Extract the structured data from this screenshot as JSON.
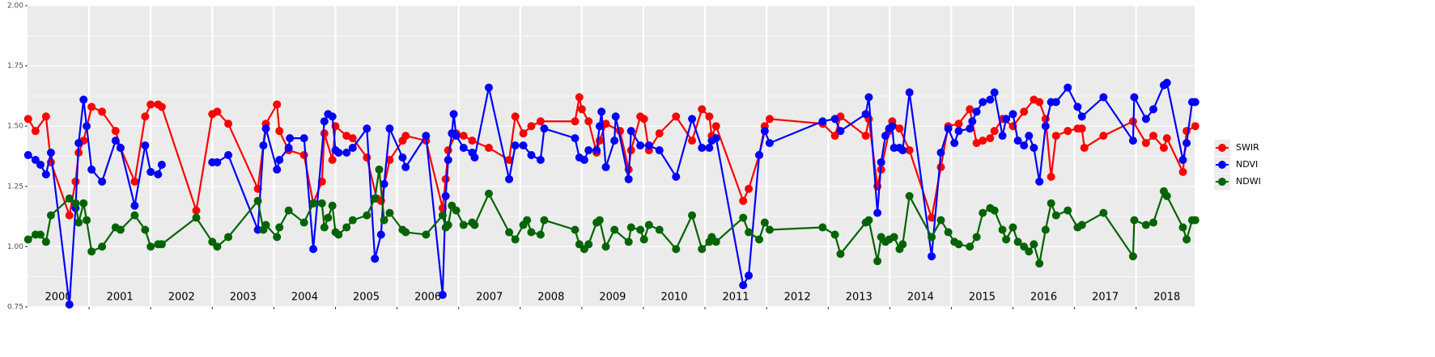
{
  "chart_data": {
    "type": "line",
    "xlim": [
      2000,
      2018.95
    ],
    "xticks": [
      2001,
      2002,
      2003,
      2004,
      2005,
      2006,
      2007,
      2008,
      2009,
      2010,
      2011,
      2012,
      2013,
      2014,
      2015,
      2016,
      2017,
      2018
    ],
    "ylim": [
      0.75,
      2.0
    ],
    "yticks": [
      {
        "value": 0.75,
        "label": "0.75"
      },
      {
        "value": 1.0,
        "label": "1.00"
      },
      {
        "value": 1.25,
        "label": "1.25"
      },
      {
        "value": 1.5,
        "label": "1.50"
      },
      {
        "value": 1.75,
        "label": "1.75"
      },
      {
        "value": 2.0,
        "label": "2.00"
      }
    ],
    "grid": true,
    "legend": "right",
    "annotations": [
      {
        "text": "2000",
        "x": 2000.5,
        "y": 0.79
      },
      {
        "text": "2001",
        "x": 2001.5,
        "y": 0.79
      },
      {
        "text": "2002",
        "x": 2002.5,
        "y": 0.79
      },
      {
        "text": "2003",
        "x": 2003.5,
        "y": 0.79
      },
      {
        "text": "2004",
        "x": 2004.5,
        "y": 0.79
      },
      {
        "text": "2005",
        "x": 2005.5,
        "y": 0.79
      },
      {
        "text": "2006",
        "x": 2006.5,
        "y": 0.79
      },
      {
        "text": "2007",
        "x": 2007.5,
        "y": 0.79
      },
      {
        "text": "2008",
        "x": 2008.5,
        "y": 0.79
      },
      {
        "text": "2009",
        "x": 2009.5,
        "y": 0.79
      },
      {
        "text": "2010",
        "x": 2010.5,
        "y": 0.79
      },
      {
        "text": "2011",
        "x": 2011.5,
        "y": 0.79
      },
      {
        "text": "2012",
        "x": 2012.5,
        "y": 0.79
      },
      {
        "text": "2013",
        "x": 2013.5,
        "y": 0.79
      },
      {
        "text": "2014",
        "x": 2014.5,
        "y": 0.79
      },
      {
        "text": "2015",
        "x": 2015.5,
        "y": 0.79
      },
      {
        "text": "2016",
        "x": 2016.5,
        "y": 0.79
      },
      {
        "text": "2017",
        "x": 2017.5,
        "y": 0.79
      },
      {
        "text": "2018",
        "x": 2018.5,
        "y": 0.79
      }
    ],
    "series": [
      {
        "name": "SWIR",
        "color": "#ff0000",
        "x": [
          2000.01,
          2000.13,
          2000.3,
          2000.38,
          2000.68,
          2000.78,
          2000.83,
          2000.91,
          2001.04,
          2001.21,
          2001.43,
          2001.51,
          2001.74,
          2001.91,
          2002.0,
          2002.12,
          2002.18,
          2002.74,
          2003.0,
          2003.08,
          2003.26,
          2003.74,
          2003.87,
          2004.05,
          2004.09,
          2004.24,
          2004.49,
          2004.64,
          2004.78,
          2004.82,
          2004.95,
          2005.0,
          2005.18,
          2005.28,
          2005.51,
          2005.67,
          2005.74,
          2005.88,
          2006.09,
          2006.14,
          2006.47,
          2006.74,
          2006.79,
          2006.83,
          2006.96,
          2007.08,
          2007.22,
          2007.49,
          2007.82,
          2007.92,
          2008.05,
          2008.18,
          2008.33,
          2008.89,
          2008.96,
          2009.0,
          2009.11,
          2009.24,
          2009.29,
          2009.39,
          2009.62,
          2009.76,
          2009.8,
          2009.95,
          2010.01,
          2010.09,
          2010.26,
          2010.53,
          2010.79,
          2010.95,
          2011.07,
          2011.11,
          2011.18,
          2011.62,
          2011.71,
          2011.88,
          2011.97,
          2012.05,
          2012.91,
          2013.11,
          2013.2,
          2013.61,
          2013.66,
          2013.8,
          2013.86,
          2013.99,
          2014.04,
          2014.16,
          2014.32,
          2014.68,
          2014.83,
          2014.95,
          2015.12,
          2015.3,
          2015.41,
          2015.51,
          2015.63,
          2015.7,
          2015.83,
          2016.0,
          2016.18,
          2016.34,
          2016.43,
          2016.53,
          2016.62,
          2016.7,
          2016.89,
          2017.05,
          2017.12,
          2017.16,
          2017.47,
          2017.95,
          2018.16,
          2018.28,
          2018.45,
          2018.5,
          2018.76,
          2018.82,
          2018.96
        ],
        "values": [
          1.53,
          1.48,
          1.54,
          1.35,
          1.13,
          1.27,
          1.39,
          1.44,
          1.58,
          1.56,
          1.48,
          1.41,
          1.27,
          1.54,
          1.59,
          1.59,
          1.58,
          1.15,
          1.55,
          1.56,
          1.51,
          1.24,
          1.51,
          1.59,
          1.48,
          1.4,
          1.38,
          1.18,
          1.27,
          1.47,
          1.36,
          1.5,
          1.46,
          1.45,
          1.37,
          1.2,
          1.19,
          1.36,
          1.44,
          1.46,
          1.44,
          1.16,
          1.28,
          1.4,
          1.47,
          1.46,
          1.44,
          1.41,
          1.36,
          1.54,
          1.47,
          1.5,
          1.52,
          1.52,
          1.62,
          1.57,
          1.52,
          1.39,
          1.44,
          1.51,
          1.48,
          1.32,
          1.4,
          1.54,
          1.53,
          1.4,
          1.47,
          1.54,
          1.44,
          1.57,
          1.54,
          1.46,
          1.5,
          1.19,
          1.24,
          1.38,
          1.5,
          1.53,
          1.51,
          1.46,
          1.54,
          1.46,
          1.53,
          1.25,
          1.32,
          1.48,
          1.52,
          1.49,
          1.4,
          1.12,
          1.33,
          1.5,
          1.51,
          1.57,
          1.43,
          1.44,
          1.45,
          1.48,
          1.53,
          1.5,
          1.56,
          1.61,
          1.6,
          1.53,
          1.29,
          1.46,
          1.48,
          1.49,
          1.49,
          1.41,
          1.46,
          1.52,
          1.43,
          1.46,
          1.41,
          1.45,
          1.31,
          1.48,
          1.5
        ]
      },
      {
        "name": "NDVI",
        "color": "#0000ff",
        "x": [
          2000.01,
          2000.13,
          2000.21,
          2000.3,
          2000.38,
          2000.68,
          2000.78,
          2000.83,
          2000.91,
          2000.96,
          2001.04,
          2001.21,
          2001.43,
          2001.51,
          2001.74,
          2001.91,
          2002.0,
          2002.12,
          2002.18,
          2002.74,
          2003.0,
          2003.08,
          2003.26,
          2003.74,
          2003.83,
          2003.87,
          2004.05,
          2004.09,
          2004.24,
          2004.26,
          2004.49,
          2004.64,
          2004.82,
          2004.88,
          2004.95,
          2005.0,
          2005.05,
          2005.18,
          2005.28,
          2005.51,
          2005.64,
          2005.74,
          2005.79,
          2005.88,
          2006.09,
          2006.14,
          2006.47,
          2006.74,
          2006.79,
          2006.83,
          2006.89,
          2006.92,
          2006.96,
          2007.08,
          2007.22,
          2007.26,
          2007.49,
          2007.82,
          2007.92,
          2008.05,
          2008.18,
          2008.33,
          2008.39,
          2008.89,
          2008.96,
          2009.04,
          2009.11,
          2009.24,
          2009.29,
          2009.32,
          2009.39,
          2009.53,
          2009.55,
          2009.76,
          2009.8,
          2009.95,
          2010.09,
          2010.26,
          2010.53,
          2010.79,
          2010.95,
          2011.07,
          2011.11,
          2011.18,
          2011.62,
          2011.71,
          2011.88,
          2011.97,
          2012.05,
          2012.91,
          2013.11,
          2013.2,
          2013.61,
          2013.66,
          2013.8,
          2013.86,
          2013.93,
          2013.99,
          2014.04,
          2014.07,
          2014.16,
          2014.21,
          2014.32,
          2014.68,
          2014.83,
          2014.95,
          2015.05,
          2015.12,
          2015.3,
          2015.34,
          2015.41,
          2015.51,
          2015.63,
          2015.7,
          2015.83,
          2015.89,
          2016.0,
          2016.08,
          2016.18,
          2016.26,
          2016.34,
          2016.43,
          2016.53,
          2016.62,
          2016.7,
          2016.89,
          2017.05,
          2017.12,
          2017.47,
          2017.95,
          2017.97,
          2018.16,
          2018.28,
          2018.45,
          2018.5,
          2018.76,
          2018.82,
          2018.91,
          2018.96
        ],
        "values": [
          1.38,
          1.36,
          1.34,
          1.3,
          1.39,
          0.76,
          1.16,
          1.43,
          1.61,
          1.5,
          1.32,
          1.27,
          1.44,
          1.41,
          1.17,
          1.42,
          1.31,
          1.3,
          1.34,
          null,
          1.35,
          1.35,
          1.38,
          1.07,
          1.42,
          1.49,
          1.32,
          1.36,
          1.41,
          1.45,
          1.45,
          0.99,
          1.52,
          1.55,
          1.54,
          1.4,
          1.39,
          1.39,
          1.41,
          1.49,
          0.95,
          1.05,
          1.26,
          1.49,
          1.37,
          1.33,
          1.46,
          0.8,
          1.21,
          1.36,
          1.47,
          1.55,
          1.46,
          1.41,
          1.39,
          1.37,
          1.66,
          1.28,
          1.42,
          1.42,
          1.38,
          1.36,
          1.49,
          1.45,
          1.37,
          1.36,
          1.4,
          1.4,
          1.5,
          1.56,
          1.33,
          1.44,
          1.54,
          1.28,
          1.48,
          1.42,
          1.42,
          1.4,
          1.29,
          1.53,
          1.41,
          1.41,
          1.44,
          1.45,
          0.84,
          0.88,
          1.38,
          1.48,
          1.43,
          1.52,
          1.53,
          1.48,
          1.55,
          1.62,
          1.14,
          1.35,
          1.46,
          1.49,
          1.5,
          1.41,
          1.41,
          1.4,
          1.64,
          0.96,
          1.39,
          1.49,
          1.43,
          1.48,
          1.49,
          1.52,
          1.56,
          1.6,
          1.61,
          1.64,
          1.46,
          1.53,
          1.55,
          1.44,
          1.42,
          1.46,
          1.41,
          1.27,
          1.5,
          1.6,
          1.6,
          1.66,
          1.58,
          1.54,
          1.62,
          1.44,
          1.62,
          1.53,
          1.57,
          1.67,
          1.68,
          1.36,
          1.43,
          1.6,
          1.6
        ]
      },
      {
        "name": "NDWI",
        "color": "#006400",
        "x": [
          2000.01,
          2000.13,
          2000.21,
          2000.3,
          2000.38,
          2000.68,
          2000.78,
          2000.83,
          2000.91,
          2000.96,
          2001.04,
          2001.21,
          2001.43,
          2001.51,
          2001.74,
          2001.91,
          2002.0,
          2002.12,
          2002.18,
          2002.74,
          2003.0,
          2003.08,
          2003.26,
          2003.74,
          2003.83,
          2003.87,
          2004.05,
          2004.09,
          2004.24,
          2004.49,
          2004.64,
          2004.78,
          2004.82,
          2004.88,
          2004.95,
          2005.0,
          2005.05,
          2005.18,
          2005.28,
          2005.51,
          2005.64,
          2005.71,
          2005.79,
          2005.88,
          2006.09,
          2006.14,
          2006.47,
          2006.74,
          2006.79,
          2006.83,
          2006.89,
          2006.96,
          2007.08,
          2007.22,
          2007.26,
          2007.49,
          2007.82,
          2007.92,
          2008.05,
          2008.11,
          2008.18,
          2008.33,
          2008.39,
          2008.89,
          2008.96,
          2009.04,
          2009.11,
          2009.24,
          2009.29,
          2009.39,
          2009.53,
          2009.76,
          2009.8,
          2009.95,
          2010.01,
          2010.09,
          2010.26,
          2010.53,
          2010.79,
          2010.95,
          2011.07,
          2011.11,
          2011.18,
          2011.62,
          2011.71,
          2011.88,
          2011.97,
          2012.05,
          2012.91,
          2013.11,
          2013.2,
          2013.61,
          2013.66,
          2013.8,
          2013.86,
          2013.93,
          2013.99,
          2014.07,
          2014.16,
          2014.21,
          2014.32,
          2014.68,
          2014.83,
          2014.95,
          2015.05,
          2015.12,
          2015.3,
          2015.41,
          2015.51,
          2015.63,
          2015.7,
          2015.83,
          2015.89,
          2016.0,
          2016.08,
          2016.18,
          2016.26,
          2016.34,
          2016.43,
          2016.53,
          2016.62,
          2016.7,
          2016.89,
          2017.05,
          2017.12,
          2017.47,
          2017.95,
          2017.97,
          2018.16,
          2018.28,
          2018.45,
          2018.5,
          2018.76,
          2018.82,
          2018.91,
          2018.96
        ],
        "values": [
          1.03,
          1.05,
          1.05,
          1.02,
          1.13,
          1.2,
          1.18,
          1.1,
          1.18,
          1.11,
          0.98,
          1.0,
          1.08,
          1.07,
          1.13,
          1.07,
          1.0,
          1.01,
          1.01,
          1.12,
          1.02,
          1.0,
          1.04,
          1.19,
          1.07,
          1.09,
          1.04,
          1.08,
          1.15,
          1.1,
          1.18,
          1.18,
          1.08,
          1.12,
          1.17,
          1.06,
          1.05,
          1.08,
          1.11,
          1.13,
          1.2,
          1.32,
          1.11,
          1.14,
          1.07,
          1.06,
          1.05,
          1.13,
          1.08,
          1.09,
          1.17,
          1.15,
          1.09,
          1.1,
          1.09,
          1.22,
          1.06,
          1.03,
          1.09,
          1.11,
          1.06,
          1.05,
          1.11,
          1.07,
          1.01,
          0.99,
          1.01,
          1.1,
          1.11,
          1.0,
          1.07,
          1.02,
          1.08,
          1.07,
          1.03,
          1.09,
          1.07,
          0.99,
          1.13,
          0.99,
          1.02,
          1.04,
          1.02,
          1.12,
          1.06,
          1.03,
          1.1,
          1.07,
          1.08,
          1.05,
          0.97,
          1.1,
          1.11,
          0.94,
          1.04,
          1.02,
          1.03,
          1.04,
          0.99,
          1.01,
          1.21,
          1.04,
          1.11,
          1.06,
          1.02,
          1.01,
          1.0,
          1.04,
          1.14,
          1.16,
          1.15,
          1.07,
          1.03,
          1.08,
          1.02,
          1.0,
          0.98,
          1.01,
          0.93,
          1.07,
          1.18,
          1.13,
          1.15,
          1.08,
          1.09,
          1.14,
          0.96,
          1.11,
          1.09,
          1.1,
          1.23,
          1.21,
          1.08,
          1.03,
          1.11,
          1.11
        ]
      }
    ]
  }
}
